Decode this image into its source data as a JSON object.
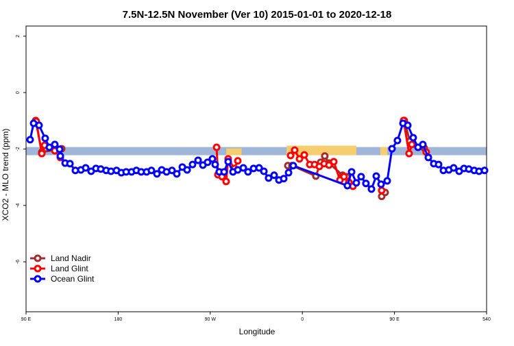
{
  "chart_data": {
    "type": "line",
    "title": "7.5N-12.5N November (Ver 10)   2015-01-01 to 2020-12-18",
    "x_label": "Longitude",
    "y_label": "XCO2 - MLO trend (ppm)",
    "xlim": [
      90,
      540
    ],
    "ylim": [
      -7.77,
      2.36
    ],
    "xticks": [
      {
        "value": 90,
        "label": "90 E"
      },
      180,
      {
        "value": 270,
        "label": "90 W"
      },
      {
        "value": 360,
        "label": "0"
      },
      {
        "value": 450,
        "label": "90 E"
      },
      540
    ],
    "yticks": [
      2,
      0,
      -2,
      -4,
      -6
    ],
    "legend": "bottom-left",
    "band": {
      "range": [
        -2.22,
        -1.93
      ],
      "color": "#9fb6d9"
    },
    "patches": {
      "color": "#f6cd6f",
      "regions": [
        [
          285.6,
          300.6,
          -1.98
        ],
        [
          344.5,
          412.8,
          -1.88
        ],
        [
          436.2,
          443.0,
          -1.93
        ]
      ]
    },
    "series": [
      {
        "name": "Land Nadir",
        "color": "#a52a2a",
        "x": [
          99.4,
          105.4,
          124.8,
          null,
          345.8,
          349.8,
          373.2,
          377.9,
          381.9,
          386.0,
          399.3,
          403.4,
          null,
          437.5,
          440.9,
          null,
          459.6,
          465.0,
          479.0
        ],
        "values": [
          -0.99,
          -2.11,
          -1.99,
          null,
          -2.59,
          -2.59,
          -2.96,
          -2.47,
          -2.25,
          -2.5,
          -2.93,
          -2.98,
          null,
          -3.68,
          -3.54,
          null,
          -0.99,
          -1.72,
          -1.96
        ]
      },
      {
        "name": "Land Glint",
        "color": "#ff0000",
        "x": [
          100.0,
          105.4,
          108.1,
          118.1,
          123.5,
          null,
          276.2,
          277.5,
          281.5,
          285.5,
          287.5,
          293.6,
          296.9,
          null,
          348.5,
          352.5,
          357.2,
          361.9,
          367.2,
          371.9,
          376.6,
          381.3,
          386.0,
          390.7,
          396.7,
          400.7,
          405.4,
          409.4,
          null,
          437.5,
          null,
          458.9,
          464.3,
          467.0,
          477.7,
          481.0
        ],
        "values": [
          -1.02,
          -2.16,
          -1.87,
          -2.06,
          -2.3,
          null,
          -1.94,
          -2.91,
          -2.98,
          -3.15,
          -2.35,
          -2.69,
          -2.42,
          null,
          -2.23,
          -2.04,
          -2.35,
          -2.21,
          -2.55,
          -2.55,
          -2.62,
          -2.52,
          -2.57,
          -2.45,
          -3.1,
          -2.98,
          -3.18,
          -3.32,
          null,
          -3.47,
          null,
          -0.99,
          -2.16,
          -1.84,
          -1.87,
          -2.11
        ]
      },
      {
        "name": "Ocean Glint",
        "color": "#0000ff",
        "x": [
          94.0,
          97.4,
          102.7,
          108.7,
          112.8,
          118.1,
          122.8,
          123.5,
          128.2,
          132.9,
          138.2,
          143.6,
          148.3,
          153.6,
          158.3,
          163.0,
          168.3,
          173.0,
          178.4,
          183.1,
          187.8,
          193.1,
          197.8,
          202.5,
          207.8,
          212.5,
          217.9,
          222.6,
          227.3,
          232.6,
          237.3,
          242.7,
          247.4,
          252.7,
          258.1,
          262.8,
          267.4,
          272.1,
          274.8,
          278.8,
          283.5,
          287.5,
          292.2,
          296.9,
          302.3,
          306.9,
          312.3,
          317.7,
          322.4,
          327.0,
          332.4,
          337.1,
          341.8,
          346.5,
          351.1,
          404.0,
          408.1,
          412.7,
          417.4,
          422.1,
          427.5,
          432.2,
          436.9,
          442.9,
          447.6,
          452.9,
          458.3,
          463.0,
          468.3,
          473.0,
          477.7,
          483.1,
          488.4,
          493.1,
          497.8,
          503.1,
          507.8,
          513.2,
          517.9,
          522.6,
          527.9,
          532.6,
          538.0
        ],
        "values": [
          -1.67,
          -1.09,
          -1.16,
          -1.62,
          -1.94,
          -1.84,
          -2.01,
          -2.25,
          -2.5,
          -2.52,
          -2.76,
          -2.74,
          -2.67,
          -2.79,
          -2.69,
          -2.71,
          -2.76,
          -2.79,
          -2.76,
          -2.84,
          -2.81,
          -2.81,
          -2.76,
          -2.81,
          -2.81,
          -2.76,
          -2.88,
          -2.74,
          -2.81,
          -2.76,
          -2.88,
          -2.64,
          -2.74,
          -2.55,
          -2.4,
          -2.57,
          -2.47,
          -2.35,
          -2.55,
          -2.81,
          -2.81,
          -2.45,
          -2.81,
          -2.74,
          -2.67,
          -2.81,
          -2.69,
          -2.67,
          -2.79,
          -3.03,
          -2.93,
          -3.1,
          -3.05,
          -2.84,
          -2.59,
          -3.3,
          -2.81,
          -3.2,
          -2.98,
          -3.22,
          -3.42,
          -2.96,
          -3.25,
          -3.13,
          -1.99,
          -1.7,
          -1.09,
          -1.16,
          -1.6,
          -1.94,
          -1.84,
          -2.3,
          -2.52,
          -2.55,
          -2.76,
          -2.74,
          -2.67,
          -2.79,
          -2.69,
          -2.71,
          -2.76,
          -2.79,
          -2.76
        ]
      }
    ]
  }
}
